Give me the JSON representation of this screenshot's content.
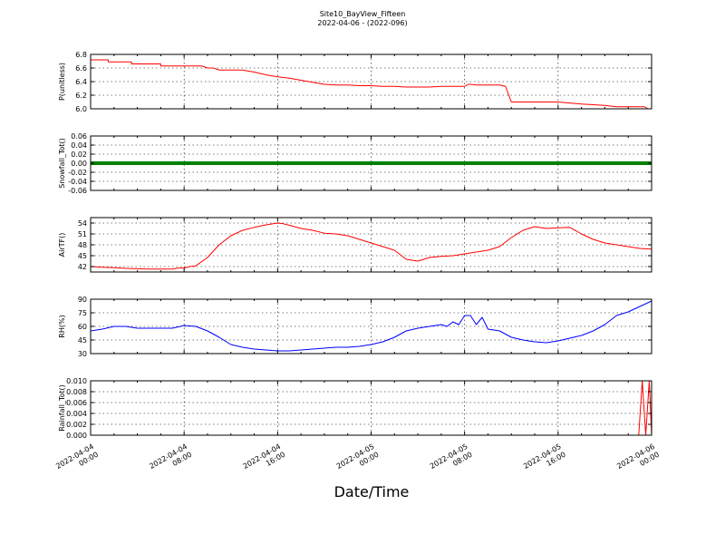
{
  "figure": {
    "title": "Site10_BayView_Fifteen",
    "subtitle": "2022-04-06 - (2022-096)",
    "xlabel": "Date/Time",
    "x_ticks": [
      {
        "line1": "2022-04-04",
        "line2": "00:00"
      },
      {
        "line1": "2022-04-04",
        "line2": "08:00"
      },
      {
        "line1": "2022-04-04",
        "line2": "16:00"
      },
      {
        "line1": "2022-04-05",
        "line2": "00:00"
      },
      {
        "line1": "2022-04-05",
        "line2": "08:00"
      },
      {
        "line1": "2022-04-05",
        "line2": "16:00"
      },
      {
        "line1": "2022-04-06",
        "line2": "00:00"
      }
    ]
  },
  "chart_data": [
    {
      "type": "line",
      "ylabel": "P(unitless)",
      "ylim": [
        6.0,
        6.8
      ],
      "yticks": [
        "6.0",
        "6.2",
        "6.4",
        "6.6",
        "6.8"
      ],
      "color": "#ff0000",
      "grid": true,
      "x_hours": [
        0,
        1.5,
        1.5,
        3.5,
        3.5,
        6,
        6,
        9.5,
        10,
        10.5,
        11,
        12,
        13,
        14,
        15,
        16,
        17,
        18,
        19,
        20,
        21,
        22,
        23,
        24,
        25,
        26,
        27,
        28,
        29,
        30,
        31,
        32,
        32.3,
        32.5,
        33,
        34,
        35,
        35.5,
        36,
        38,
        39,
        40,
        42,
        44,
        45,
        46,
        47,
        47.4,
        47.7,
        48
      ],
      "y": [
        6.72,
        6.72,
        6.69,
        6.69,
        6.66,
        6.66,
        6.63,
        6.63,
        6.6,
        6.6,
        6.57,
        6.57,
        6.57,
        6.54,
        6.5,
        6.47,
        6.45,
        6.42,
        6.39,
        6.36,
        6.35,
        6.35,
        6.34,
        6.34,
        6.33,
        6.33,
        6.32,
        6.32,
        6.32,
        6.33,
        6.33,
        6.33,
        6.36,
        6.36,
        6.35,
        6.35,
        6.35,
        6.33,
        6.1,
        6.1,
        6.1,
        6.1,
        6.07,
        6.05,
        6.03,
        6.03,
        6.03,
        6.03,
        6.0,
        6.0
      ]
    },
    {
      "type": "line",
      "ylabel": "Snowfall_Tot()",
      "ylim": [
        -0.06,
        0.06
      ],
      "yticks": [
        "-0.06",
        "-0.04",
        "-0.02",
        "0.00",
        "0.02",
        "0.04",
        "0.06"
      ],
      "color": "#008000",
      "grid": true,
      "x_hours": [
        0,
        48
      ],
      "y": [
        0.0,
        0.0
      ]
    },
    {
      "type": "line",
      "ylabel": "AirTF()",
      "ylim": [
        40.5,
        55.5
      ],
      "yticks": [
        "42",
        "45",
        "48",
        "51",
        "54"
      ],
      "color": "#ff0000",
      "grid": true,
      "x_hours": [
        0,
        1,
        2,
        3,
        4,
        5,
        6,
        7,
        7.5,
        8,
        8.5,
        9,
        10,
        11,
        12,
        13,
        14,
        15,
        16,
        16.5,
        17,
        18,
        19,
        20,
        21,
        22,
        23,
        24,
        25,
        26,
        27,
        28,
        29,
        30,
        31,
        32,
        33,
        34,
        35,
        36,
        37,
        38,
        39,
        40,
        41,
        42,
        43,
        44,
        45,
        46,
        47,
        48
      ],
      "y": [
        42.0,
        41.8,
        41.7,
        41.5,
        41.4,
        41.3,
        41.3,
        41.3,
        41.6,
        41.6,
        42.0,
        42.2,
        44.5,
        48.0,
        50.5,
        52.0,
        52.8,
        53.5,
        54.0,
        53.8,
        53.4,
        52.5,
        52.0,
        51.2,
        51.0,
        50.5,
        49.5,
        48.5,
        47.5,
        46.5,
        44.0,
        43.5,
        44.5,
        44.8,
        45.0,
        45.5,
        46.0,
        46.5,
        47.5,
        50.0,
        52.0,
        53.0,
        52.5,
        52.7,
        52.8,
        51.0,
        49.5,
        48.5,
        48.0,
        47.5,
        47.0,
        46.8
      ]
    },
    {
      "type": "line",
      "ylabel": "RH(%)",
      "ylim": [
        30,
        90
      ],
      "yticks": [
        "30",
        "45",
        "60",
        "75",
        "90"
      ],
      "color": "#0000ff",
      "grid": true,
      "x_hours": [
        0,
        1,
        2,
        3,
        4,
        5,
        6,
        7,
        8,
        9,
        10,
        11,
        12,
        13,
        14,
        15,
        16,
        17,
        18,
        19,
        20,
        21,
        22,
        23,
        24,
        25,
        26,
        27,
        28,
        29,
        30,
        30.5,
        31,
        31.5,
        32,
        32.5,
        33,
        33.5,
        34,
        35,
        36,
        37,
        38,
        39,
        40,
        41,
        42,
        43,
        44,
        45,
        46,
        47,
        48
      ],
      "y": [
        55,
        57,
        60,
        60,
        58,
        58,
        58,
        58,
        61,
        60,
        55,
        48,
        40,
        37,
        35,
        34,
        33,
        33,
        34,
        35,
        36,
        37,
        37,
        38,
        40,
        43,
        48,
        55,
        58,
        60,
        62,
        60,
        65,
        62,
        72,
        72,
        62,
        70,
        57,
        55,
        48,
        45,
        43,
        42,
        44,
        47,
        50,
        55,
        62,
        72,
        76,
        82,
        88
      ]
    },
    {
      "type": "line",
      "ylabel": "Rainfall_Tot()",
      "ylim": [
        0.0,
        0.01
      ],
      "yticks": [
        "0.000",
        "0.002",
        "0.004",
        "0.006",
        "0.008",
        "0.010"
      ],
      "color": "#ff0000",
      "grid": true,
      "x_hours": [
        0,
        46.9,
        47.2,
        47.5,
        47.8,
        48
      ],
      "y": [
        0.0,
        0.0,
        0.01,
        0.0,
        0.01,
        0.0
      ]
    }
  ]
}
